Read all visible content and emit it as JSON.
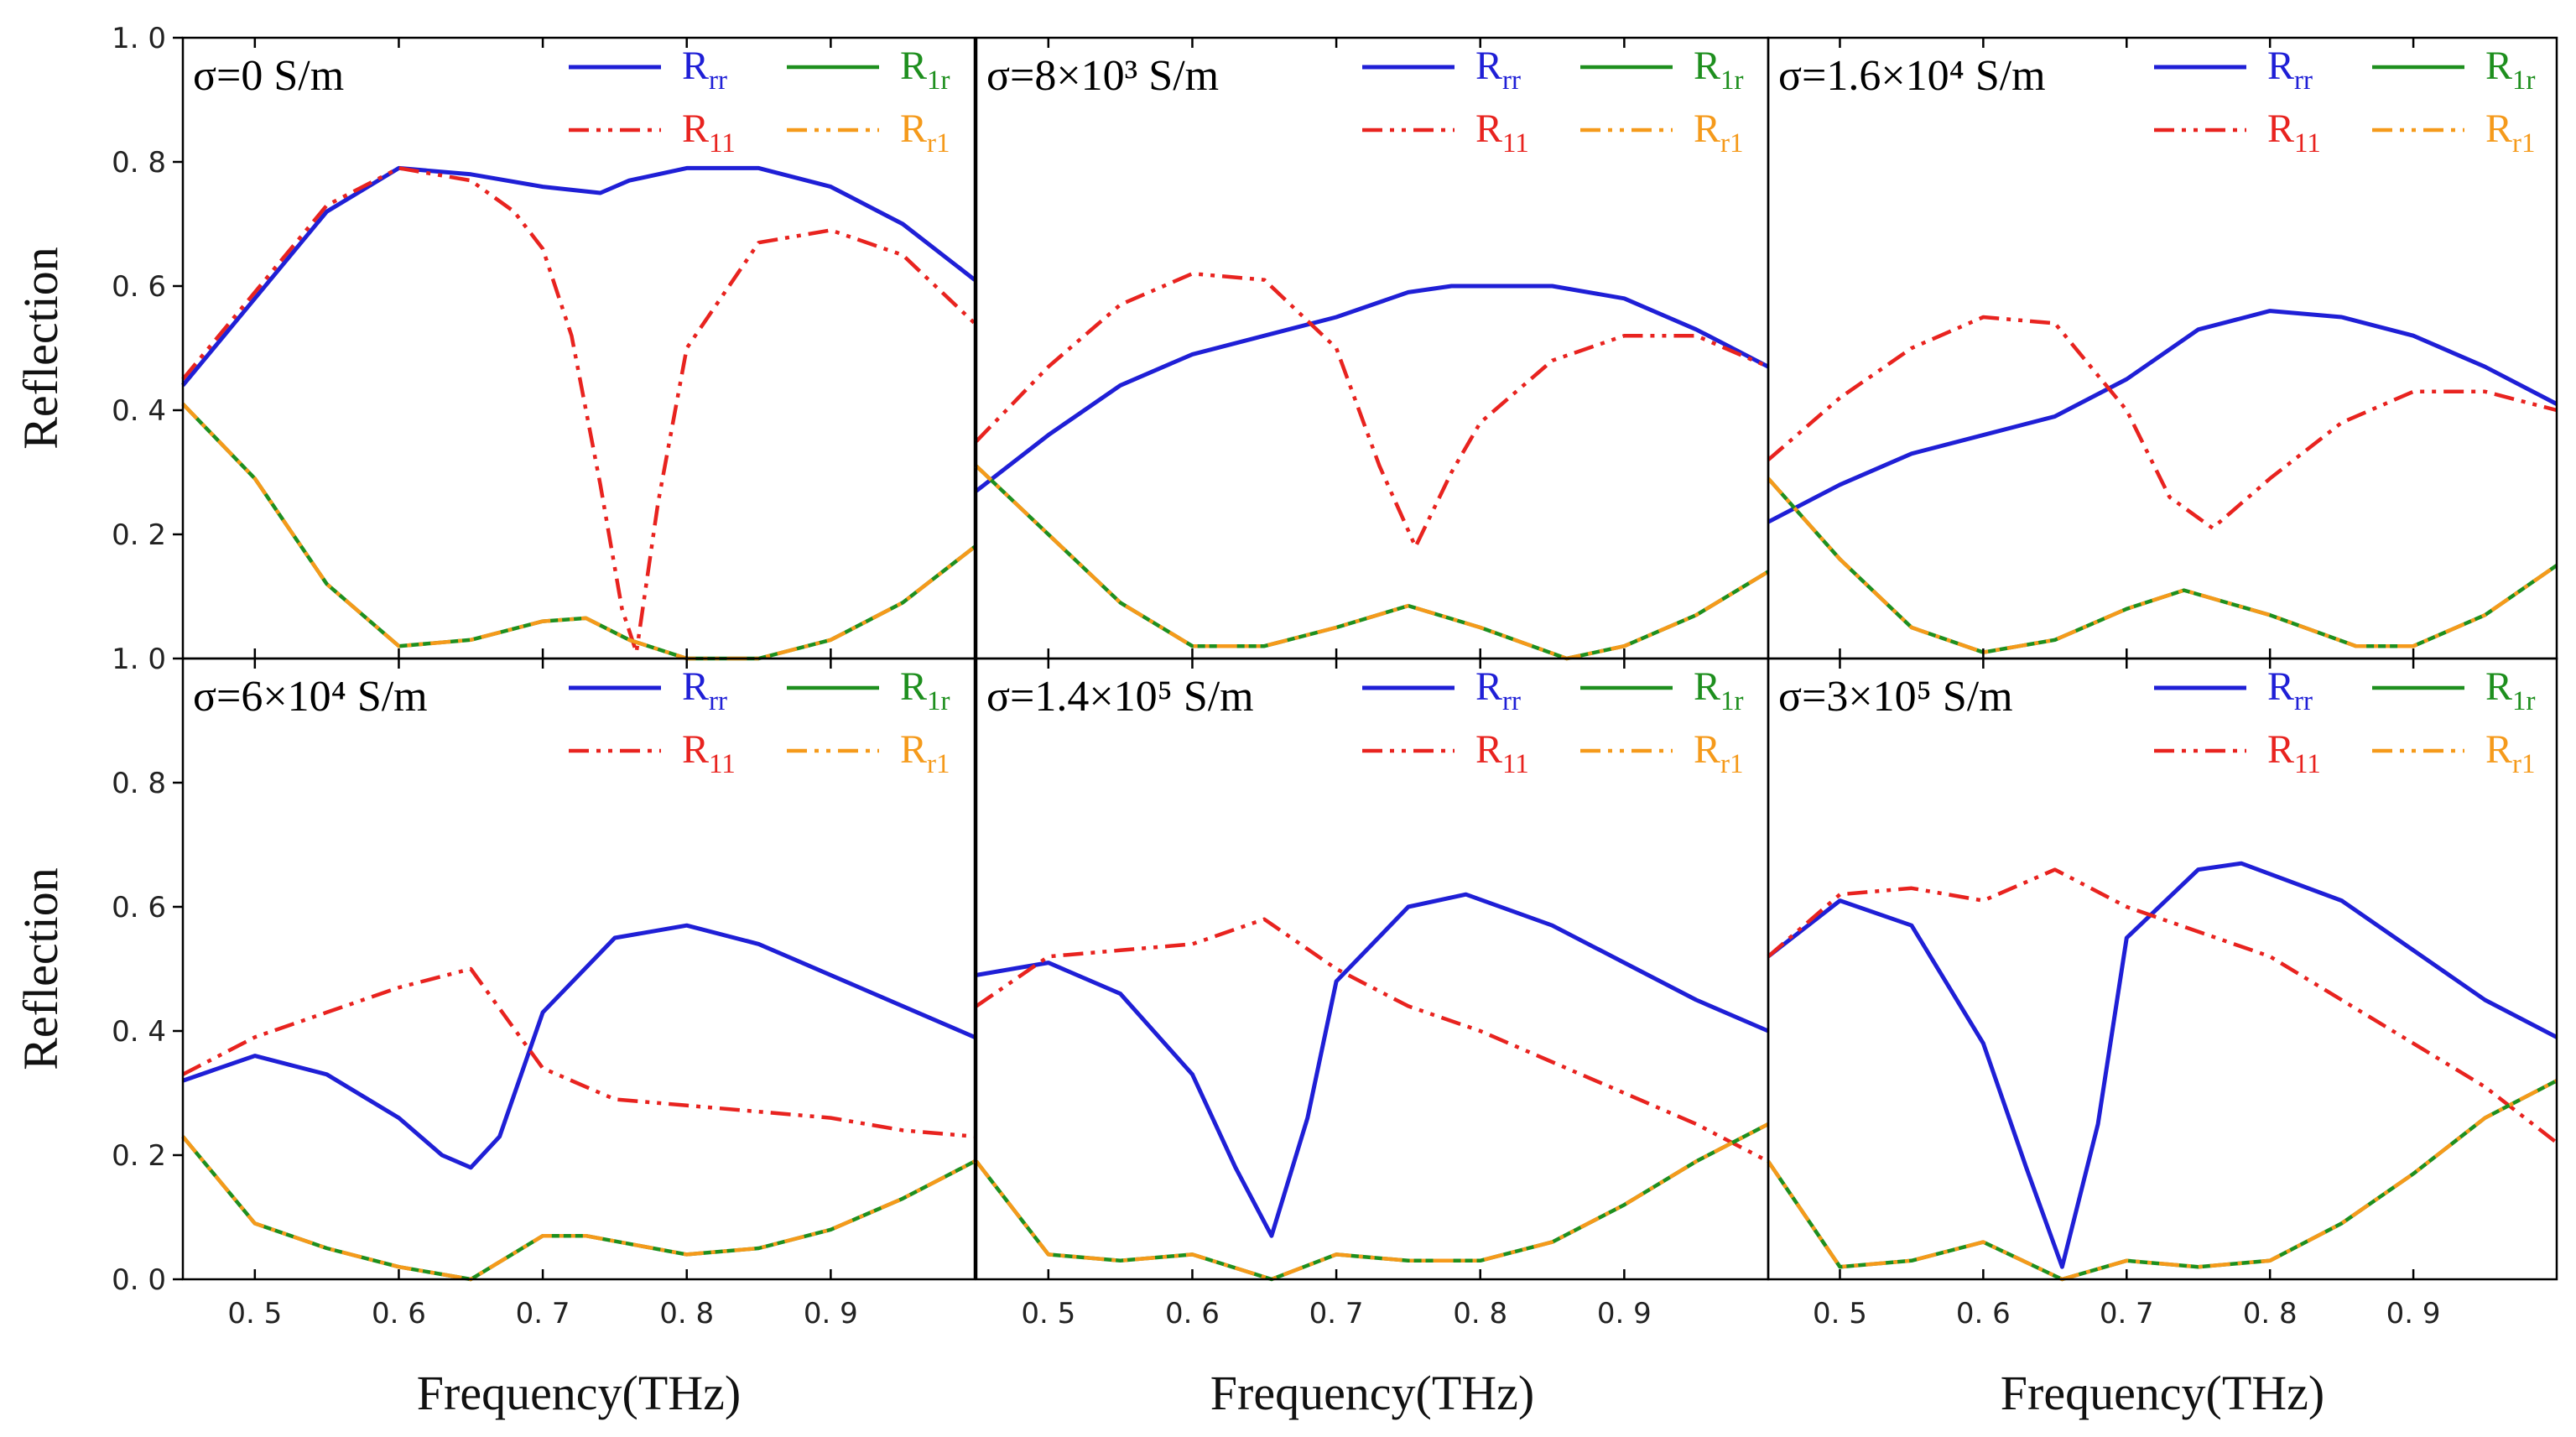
{
  "figure": {
    "ylabel": "Reflection",
    "xlabel": "Frequency(THz)",
    "x_ticks": [
      "0. 5",
      "0. 6",
      "0. 7",
      "0. 8",
      "0. 9"
    ],
    "y_ticks_top": [
      "0. 2",
      "0. 4",
      "0. 6",
      "0. 8",
      "1. 0"
    ],
    "y_ticks_bottom": [
      "0. 0",
      "0. 2",
      "0. 4",
      "0. 6",
      "0. 8",
      "1. 0"
    ],
    "colors": {
      "Rrr": "#1f1fd6",
      "R11": "#e8231f",
      "R1r": "#1e8f1e",
      "Rr1": "#f59a1b"
    },
    "legend": [
      {
        "key": "Rrr",
        "main": "R",
        "sub": "rr",
        "style": "solid"
      },
      {
        "key": "R1r",
        "main": "R",
        "sub": "1r",
        "style": "solid"
      },
      {
        "key": "R11",
        "main": "R",
        "sub": "11",
        "style": "dashdotdot"
      },
      {
        "key": "Rr1",
        "main": "R",
        "sub": "r1",
        "style": "dashdotdot"
      }
    ]
  },
  "chart_data": [
    {
      "type": "line",
      "panel_label": "σ=0 S/m",
      "xlim": [
        0.45,
        1.0
      ],
      "ylim": [
        0,
        1.0
      ],
      "series": [
        {
          "name": "Rrr",
          "x": [
            0.45,
            0.5,
            0.55,
            0.6,
            0.65,
            0.7,
            0.74,
            0.76,
            0.8,
            0.85,
            0.9,
            0.95,
            1.0
          ],
          "y": [
            0.44,
            0.58,
            0.72,
            0.79,
            0.78,
            0.76,
            0.75,
            0.77,
            0.79,
            0.79,
            0.76,
            0.7,
            0.61
          ]
        },
        {
          "name": "R11",
          "x": [
            0.45,
            0.5,
            0.55,
            0.6,
            0.65,
            0.68,
            0.7,
            0.72,
            0.74,
            0.755,
            0.765,
            0.78,
            0.8,
            0.85,
            0.9,
            0.95,
            1.0
          ],
          "y": [
            0.45,
            0.59,
            0.73,
            0.79,
            0.77,
            0.72,
            0.66,
            0.52,
            0.28,
            0.08,
            0.01,
            0.25,
            0.5,
            0.67,
            0.69,
            0.65,
            0.54
          ]
        },
        {
          "name": "R1r",
          "x": [
            0.45,
            0.5,
            0.55,
            0.6,
            0.65,
            0.7,
            0.73,
            0.76,
            0.8,
            0.85,
            0.9,
            0.95,
            1.0
          ],
          "y": [
            0.41,
            0.29,
            0.12,
            0.02,
            0.03,
            0.06,
            0.065,
            0.03,
            0.0,
            0.0,
            0.03,
            0.09,
            0.18
          ]
        },
        {
          "name": "Rr1",
          "x": [
            0.45,
            0.5,
            0.55,
            0.6,
            0.65,
            0.7,
            0.73,
            0.76,
            0.8,
            0.85,
            0.9,
            0.95,
            1.0
          ],
          "y": [
            0.41,
            0.29,
            0.12,
            0.02,
            0.03,
            0.06,
            0.065,
            0.03,
            0.0,
            0.0,
            0.03,
            0.09,
            0.18
          ]
        }
      ]
    },
    {
      "type": "line",
      "panel_label": "σ=8×10³ S/m",
      "xlim": [
        0.45,
        1.0
      ],
      "ylim": [
        0,
        1.0
      ],
      "series": [
        {
          "name": "Rrr",
          "x": [
            0.45,
            0.5,
            0.55,
            0.6,
            0.65,
            0.7,
            0.75,
            0.78,
            0.8,
            0.85,
            0.9,
            0.95,
            1.0
          ],
          "y": [
            0.27,
            0.36,
            0.44,
            0.49,
            0.52,
            0.55,
            0.59,
            0.6,
            0.6,
            0.6,
            0.58,
            0.53,
            0.47
          ]
        },
        {
          "name": "R11",
          "x": [
            0.45,
            0.5,
            0.55,
            0.6,
            0.65,
            0.7,
            0.73,
            0.755,
            0.78,
            0.8,
            0.85,
            0.9,
            0.95,
            1.0
          ],
          "y": [
            0.35,
            0.47,
            0.57,
            0.62,
            0.61,
            0.5,
            0.31,
            0.18,
            0.3,
            0.38,
            0.48,
            0.52,
            0.52,
            0.47
          ]
        },
        {
          "name": "R1r",
          "x": [
            0.45,
            0.5,
            0.55,
            0.6,
            0.65,
            0.7,
            0.75,
            0.8,
            0.86,
            0.9,
            0.95,
            1.0
          ],
          "y": [
            0.31,
            0.2,
            0.09,
            0.02,
            0.02,
            0.05,
            0.085,
            0.05,
            0.0,
            0.02,
            0.07,
            0.14
          ]
        },
        {
          "name": "Rr1",
          "x": [
            0.45,
            0.5,
            0.55,
            0.6,
            0.65,
            0.7,
            0.75,
            0.8,
            0.86,
            0.9,
            0.95,
            1.0
          ],
          "y": [
            0.31,
            0.2,
            0.09,
            0.02,
            0.02,
            0.05,
            0.085,
            0.05,
            0.0,
            0.02,
            0.07,
            0.14
          ]
        }
      ]
    },
    {
      "type": "line",
      "panel_label": "σ=1.6×10⁴ S/m",
      "xlim": [
        0.45,
        1.0
      ],
      "ylim": [
        0,
        1.0
      ],
      "series": [
        {
          "name": "Rrr",
          "x": [
            0.45,
            0.5,
            0.55,
            0.6,
            0.65,
            0.7,
            0.75,
            0.8,
            0.85,
            0.9,
            0.95,
            1.0
          ],
          "y": [
            0.22,
            0.28,
            0.33,
            0.36,
            0.39,
            0.45,
            0.53,
            0.56,
            0.55,
            0.52,
            0.47,
            0.41
          ]
        },
        {
          "name": "R11",
          "x": [
            0.45,
            0.5,
            0.55,
            0.6,
            0.65,
            0.7,
            0.73,
            0.76,
            0.8,
            0.85,
            0.9,
            0.95,
            1.0
          ],
          "y": [
            0.32,
            0.42,
            0.5,
            0.55,
            0.54,
            0.4,
            0.26,
            0.21,
            0.29,
            0.38,
            0.43,
            0.43,
            0.4
          ]
        },
        {
          "name": "R1r",
          "x": [
            0.45,
            0.5,
            0.55,
            0.6,
            0.65,
            0.7,
            0.74,
            0.8,
            0.86,
            0.9,
            0.95,
            1.0
          ],
          "y": [
            0.29,
            0.16,
            0.05,
            0.01,
            0.03,
            0.08,
            0.11,
            0.07,
            0.02,
            0.02,
            0.07,
            0.15
          ]
        },
        {
          "name": "Rr1",
          "x": [
            0.45,
            0.5,
            0.55,
            0.6,
            0.65,
            0.7,
            0.74,
            0.8,
            0.86,
            0.9,
            0.95,
            1.0
          ],
          "y": [
            0.29,
            0.16,
            0.05,
            0.01,
            0.03,
            0.08,
            0.11,
            0.07,
            0.02,
            0.02,
            0.07,
            0.15
          ]
        }
      ]
    },
    {
      "type": "line",
      "panel_label": "σ=6×10⁴ S/m",
      "xlim": [
        0.45,
        1.0
      ],
      "ylim": [
        0,
        1.0
      ],
      "series": [
        {
          "name": "Rrr",
          "x": [
            0.45,
            0.5,
            0.55,
            0.6,
            0.63,
            0.65,
            0.67,
            0.7,
            0.75,
            0.8,
            0.85,
            0.9,
            0.95,
            1.0
          ],
          "y": [
            0.32,
            0.36,
            0.33,
            0.26,
            0.2,
            0.18,
            0.23,
            0.43,
            0.55,
            0.57,
            0.54,
            0.49,
            0.44,
            0.39
          ]
        },
        {
          "name": "R11",
          "x": [
            0.45,
            0.5,
            0.55,
            0.6,
            0.65,
            0.7,
            0.75,
            0.8,
            0.85,
            0.9,
            0.95,
            1.0
          ],
          "y": [
            0.33,
            0.39,
            0.43,
            0.47,
            0.5,
            0.34,
            0.29,
            0.28,
            0.27,
            0.26,
            0.24,
            0.23
          ]
        },
        {
          "name": "R1r",
          "x": [
            0.45,
            0.5,
            0.55,
            0.6,
            0.65,
            0.7,
            0.73,
            0.8,
            0.85,
            0.9,
            0.95,
            1.0
          ],
          "y": [
            0.23,
            0.09,
            0.05,
            0.02,
            0.0,
            0.07,
            0.07,
            0.04,
            0.05,
            0.08,
            0.13,
            0.19
          ]
        },
        {
          "name": "Rr1",
          "x": [
            0.45,
            0.5,
            0.55,
            0.6,
            0.65,
            0.7,
            0.73,
            0.8,
            0.85,
            0.9,
            0.95,
            1.0
          ],
          "y": [
            0.23,
            0.09,
            0.05,
            0.02,
            0.0,
            0.07,
            0.07,
            0.04,
            0.05,
            0.08,
            0.13,
            0.19
          ]
        }
      ]
    },
    {
      "type": "line",
      "panel_label": "σ=1.4×10⁵ S/m",
      "xlim": [
        0.45,
        1.0
      ],
      "ylim": [
        0,
        1.0
      ],
      "series": [
        {
          "name": "Rrr",
          "x": [
            0.45,
            0.5,
            0.55,
            0.6,
            0.63,
            0.655,
            0.68,
            0.7,
            0.75,
            0.79,
            0.85,
            0.9,
            0.95,
            1.0
          ],
          "y": [
            0.49,
            0.51,
            0.46,
            0.33,
            0.18,
            0.07,
            0.26,
            0.48,
            0.6,
            0.62,
            0.57,
            0.51,
            0.45,
            0.4
          ]
        },
        {
          "name": "R11",
          "x": [
            0.45,
            0.5,
            0.55,
            0.6,
            0.65,
            0.7,
            0.75,
            0.8,
            0.85,
            0.9,
            0.95,
            1.0
          ],
          "y": [
            0.44,
            0.52,
            0.53,
            0.54,
            0.58,
            0.5,
            0.44,
            0.4,
            0.35,
            0.3,
            0.25,
            0.19
          ]
        },
        {
          "name": "R1r",
          "x": [
            0.45,
            0.5,
            0.55,
            0.6,
            0.655,
            0.7,
            0.75,
            0.8,
            0.85,
            0.9,
            0.95,
            1.0
          ],
          "y": [
            0.19,
            0.04,
            0.03,
            0.04,
            0.0,
            0.04,
            0.03,
            0.03,
            0.06,
            0.12,
            0.19,
            0.25
          ]
        },
        {
          "name": "Rr1",
          "x": [
            0.45,
            0.5,
            0.55,
            0.6,
            0.655,
            0.7,
            0.75,
            0.8,
            0.85,
            0.9,
            0.95,
            1.0
          ],
          "y": [
            0.19,
            0.04,
            0.03,
            0.04,
            0.0,
            0.04,
            0.03,
            0.03,
            0.06,
            0.12,
            0.19,
            0.25
          ]
        }
      ]
    },
    {
      "type": "line",
      "panel_label": "σ=3×10⁵ S/m",
      "xlim": [
        0.45,
        1.0
      ],
      "ylim": [
        0,
        1.0
      ],
      "series": [
        {
          "name": "Rrr",
          "x": [
            0.45,
            0.5,
            0.55,
            0.6,
            0.63,
            0.655,
            0.68,
            0.7,
            0.75,
            0.78,
            0.85,
            0.9,
            0.95,
            1.0
          ],
          "y": [
            0.52,
            0.61,
            0.57,
            0.38,
            0.18,
            0.02,
            0.25,
            0.55,
            0.66,
            0.67,
            0.61,
            0.53,
            0.45,
            0.39
          ]
        },
        {
          "name": "R11",
          "x": [
            0.45,
            0.5,
            0.55,
            0.6,
            0.65,
            0.7,
            0.75,
            0.8,
            0.85,
            0.9,
            0.95,
            1.0
          ],
          "y": [
            0.52,
            0.62,
            0.63,
            0.61,
            0.66,
            0.6,
            0.56,
            0.52,
            0.45,
            0.38,
            0.31,
            0.22
          ]
        },
        {
          "name": "R1r",
          "x": [
            0.45,
            0.5,
            0.55,
            0.6,
            0.655,
            0.7,
            0.75,
            0.8,
            0.85,
            0.9,
            0.95,
            1.0
          ],
          "y": [
            0.19,
            0.02,
            0.03,
            0.06,
            0.0,
            0.03,
            0.02,
            0.03,
            0.09,
            0.17,
            0.26,
            0.32
          ]
        },
        {
          "name": "Rr1",
          "x": [
            0.45,
            0.5,
            0.55,
            0.6,
            0.655,
            0.7,
            0.75,
            0.8,
            0.85,
            0.9,
            0.95,
            1.0
          ],
          "y": [
            0.19,
            0.02,
            0.03,
            0.06,
            0.0,
            0.03,
            0.02,
            0.03,
            0.09,
            0.17,
            0.26,
            0.32
          ]
        }
      ]
    }
  ]
}
